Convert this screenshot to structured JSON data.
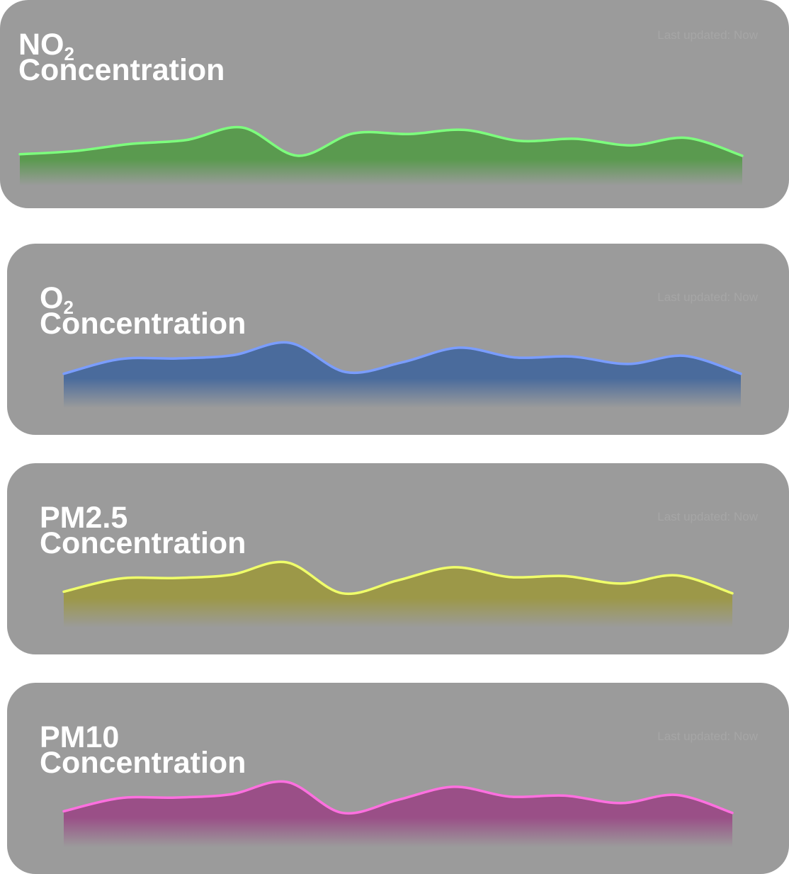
{
  "cards": [
    {
      "title_main": "NO",
      "title_sub": "2",
      "title_line2": "Concentration",
      "updated_hint": "Last updated: Now",
      "line_color": "#7dff7d",
      "fill_color": "#5a9a4f",
      "chart_data": {
        "type": "area",
        "values": [
          0.1,
          0.21,
          0.45,
          0.58,
          1.0,
          0.05,
          0.8,
          0.78,
          0.92,
          0.55,
          0.62,
          0.4,
          0.65,
          0.05
        ]
      }
    },
    {
      "title_main": "O",
      "title_sub": "2",
      "title_line2": "Concentration",
      "updated_hint": "Last updated: Now",
      "line_color": "#7a9dff",
      "fill_color": "#4a6b9c",
      "chart_data": {
        "type": "area",
        "values": [
          0.05,
          0.5,
          0.52,
          0.62,
          1.0,
          0.1,
          0.4,
          0.85,
          0.55,
          0.58,
          0.35,
          0.6,
          0.05
        ]
      }
    },
    {
      "title_main": "PM2.5",
      "title_sub": "",
      "title_line2": "Concentration",
      "updated_hint": "Last updated: Now",
      "line_color": "#f0ff6a",
      "fill_color": "#9c9848",
      "chart_data": {
        "type": "area",
        "values": [
          0.1,
          0.5,
          0.52,
          0.62,
          1.0,
          0.05,
          0.45,
          0.85,
          0.55,
          0.58,
          0.35,
          0.6,
          0.05
        ]
      }
    },
    {
      "title_main": "PM10",
      "title_sub": "",
      "title_line2": "Concentration",
      "updated_hint": "Last updated: Now",
      "line_color": "#ff70e0",
      "fill_color": "#9a4f87",
      "chart_data": {
        "type": "area",
        "values": [
          0.1,
          0.5,
          0.52,
          0.62,
          1.0,
          0.05,
          0.45,
          0.85,
          0.55,
          0.58,
          0.35,
          0.6,
          0.05
        ]
      }
    }
  ]
}
